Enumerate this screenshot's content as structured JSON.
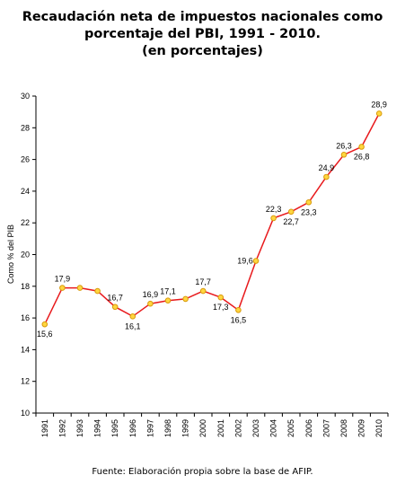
{
  "chart_data": {
    "type": "line",
    "title_lines": [
      "Recaudación neta de impuestos nacionales como",
      "porcentaje del PBI, 1991 - 2010.",
      "(en porcentajes)"
    ],
    "ylabel": "Como % del PIB",
    "xlabel": "",
    "ylim": [
      10,
      30
    ],
    "yticks": [
      "10",
      "12",
      "14",
      "16",
      "18",
      "20",
      "22",
      "24",
      "26",
      "28",
      "30"
    ],
    "x": [
      "1991",
      "1992",
      "1993",
      "1994",
      "1995",
      "1996",
      "1997",
      "1998",
      "1999",
      "2000",
      "2001",
      "2002",
      "2003",
      "2004",
      "2005",
      "2006",
      "2007",
      "2008",
      "2009",
      "2010"
    ],
    "values": [
      15.6,
      17.9,
      17.9,
      17.7,
      16.7,
      16.1,
      16.9,
      17.1,
      17.2,
      17.7,
      17.3,
      16.5,
      19.6,
      22.3,
      22.7,
      23.3,
      24.9,
      26.3,
      26.8,
      28.9
    ],
    "labels": [
      "15,6",
      "17,9",
      "",
      "",
      "16,7",
      "16,1",
      "16,9",
      "17,1",
      "",
      "17,7",
      "17,3",
      "16,5",
      "19,6",
      "22,3",
      "22,7",
      "23,3",
      "24,9",
      "26,3",
      "26,8",
      "28,9"
    ],
    "line_color": "#e8191c",
    "marker_fill": "#ffd640",
    "marker_stroke": "#d99a0b",
    "grid": false,
    "legend": "none"
  },
  "source": "Fuente: Elaboración propia sobre la base de AFIP."
}
